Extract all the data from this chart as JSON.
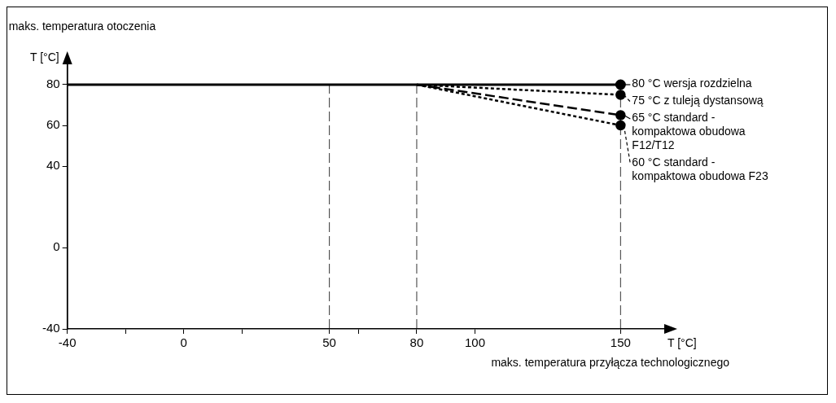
{
  "chart_data": {
    "type": "line",
    "ylabel": "maks. temperatura otoczenia",
    "xlabel": "maks. temperatura przyłącza technologicznego",
    "annotations": [
      "T [°C]",
      "T [°C]"
    ],
    "xlim": [
      -40,
      165
    ],
    "xticks": [
      -40,
      {
        "value": -20,
        "label": null
      },
      0,
      {
        "value": 20,
        "label": null
      },
      50,
      {
        "value": 60,
        "label": null
      },
      80,
      100,
      150
    ],
    "ylim": [
      -40,
      90
    ],
    "yticks": [
      -40,
      0,
      40,
      60,
      80
    ],
    "marker": "circle",
    "legend": "right",
    "ref_lines": [
      {
        "axis": "x",
        "value": 50,
        "line_style": "dashed",
        "color": "#000000"
      },
      {
        "axis": "x",
        "value": 80,
        "line_style": "dashed",
        "color": "#000000"
      },
      {
        "axis": "x",
        "value": 150,
        "line_style": "dashed",
        "color": "#000000"
      }
    ],
    "series": [
      {
        "name": "80 °C wersja rozdzielna",
        "color": "#000000",
        "line_style": "solid",
        "x": [
          -40,
          150
        ],
        "values": [
          80,
          80
        ]
      },
      {
        "name": "75 °C z tuleją dystansową",
        "color": "#000000",
        "line_style": "dotted",
        "x": [
          80,
          150
        ],
        "values": [
          80,
          75
        ]
      },
      {
        "name": "65 °C standard - kompaktowa obudowa F12/T12",
        "color": "#000000",
        "line_style": "dashed",
        "x": [
          80,
          150
        ],
        "values": [
          80,
          65
        ]
      },
      {
        "name": "60 °C standard - kompaktowa obudowa F23",
        "color": "#000000",
        "line_style": "dotted",
        "x": [
          80,
          150
        ],
        "values": [
          80,
          60
        ]
      }
    ]
  }
}
